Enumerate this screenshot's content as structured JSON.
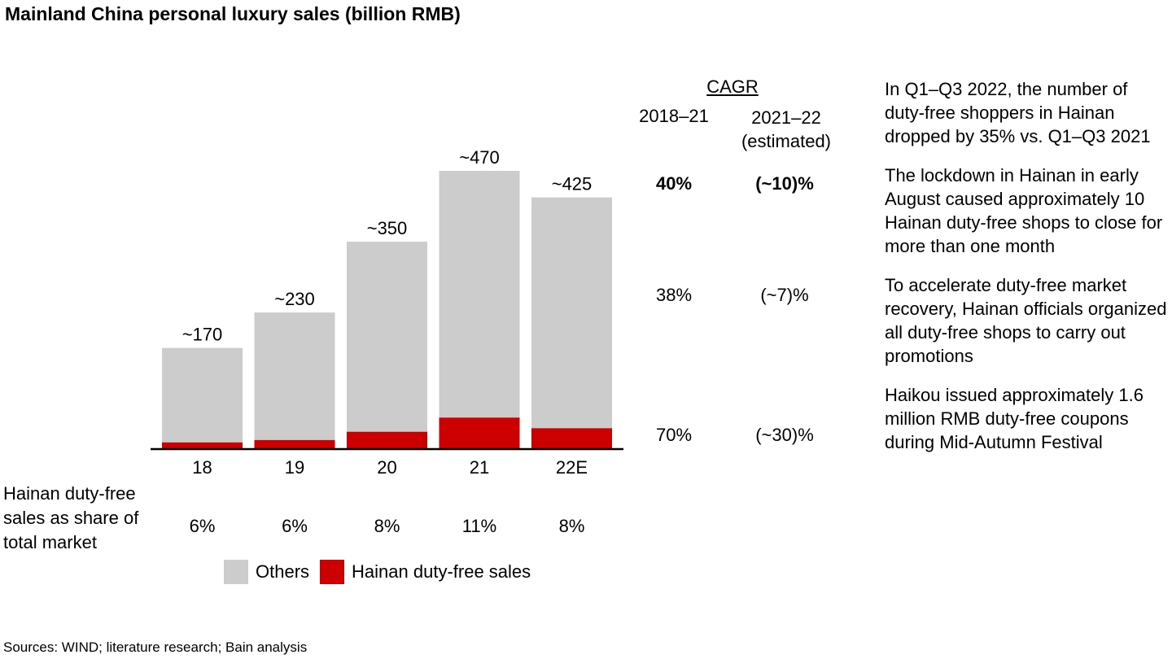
{
  "title": "Mainland China personal luxury sales (billion RMB)",
  "colors": {
    "others": "#cccccc",
    "hainan": "#cc0000",
    "axis": "#000000"
  },
  "chart_data": {
    "type": "bar",
    "stacked": true,
    "categories": [
      "18",
      "19",
      "20",
      "21",
      "22E"
    ],
    "series": [
      {
        "name": "Hainan duty-free sales",
        "values": [
          10,
          14,
          28,
          52,
          34
        ]
      },
      {
        "name": "Others",
        "values": [
          160,
          216,
          322,
          418,
          391
        ]
      }
    ],
    "total_labels": [
      "~170",
      "~230",
      "~350",
      "~470",
      "~425"
    ],
    "totals": [
      170,
      230,
      350,
      470,
      425
    ],
    "share_values": [
      "6%",
      "6%",
      "8%",
      "11%",
      "8%"
    ],
    "ylim": [
      0,
      470
    ]
  },
  "share_label": "Hainan duty-free sales as share of total market",
  "legend": [
    {
      "label": "Others",
      "color": "#cccccc"
    },
    {
      "label": "Hainan duty-free sales",
      "color": "#cc0000"
    }
  ],
  "cagr": {
    "header": "CAGR",
    "period1": "2018–21",
    "period2": "2021–22 (estimated)",
    "rows": [
      {
        "v1": "40%",
        "v2": "(~10)%",
        "bold": true
      },
      {
        "v1": "38%",
        "v2": "(~7)%",
        "bold": false
      },
      {
        "v1": "70%",
        "v2": "(~30)%",
        "bold": false
      }
    ]
  },
  "notes": [
    "In Q1–Q3 2022, the number of duty-free shoppers in Hainan dropped by 35% vs. Q1–Q3 2021",
    "The lockdown in Hainan in early August caused approximately 10 Hainan duty-free shops to close for more than one month",
    "To accelerate duty-free market recovery, Hainan officials organized all duty-free shops to carry out promotions",
    "Haikou issued approximately 1.6 million RMB duty-free coupons during Mid-Autumn Festival"
  ],
  "source": "Sources: WIND; literature research; Bain analysis"
}
